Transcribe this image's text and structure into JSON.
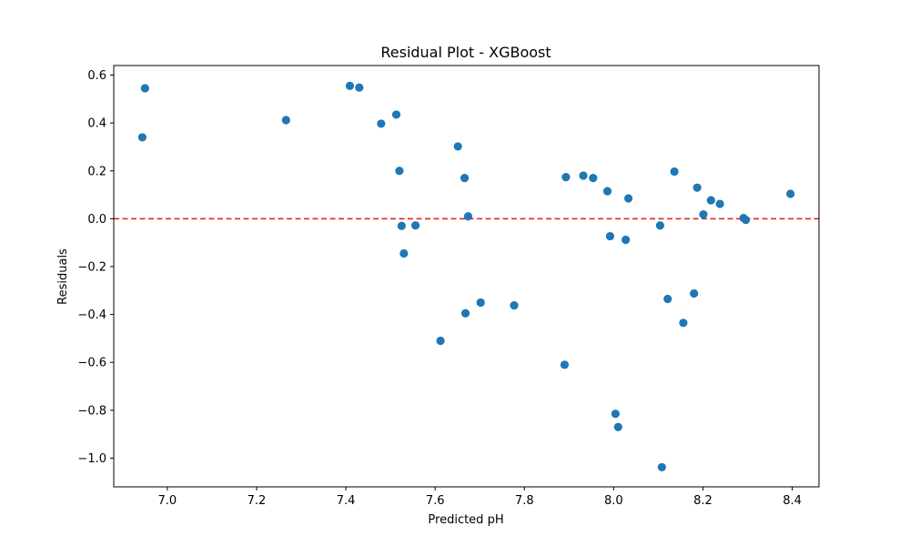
{
  "chart_data": {
    "type": "scatter",
    "title": "Residual Plot - XGBoost",
    "xlabel": "Predicted pH",
    "ylabel": "Residuals",
    "xlim": [
      6.88,
      8.46
    ],
    "ylim": [
      -1.12,
      0.64
    ],
    "xticks": [
      7.0,
      7.2,
      7.4,
      7.6,
      7.8,
      8.0,
      8.2,
      8.4
    ],
    "xtick_labels": [
      "7.0",
      "7.2",
      "7.4",
      "7.6",
      "7.8",
      "8.0",
      "8.2",
      "8.4"
    ],
    "yticks": [
      -1.0,
      -0.8,
      -0.6,
      -0.4,
      -0.2,
      0.0,
      0.2,
      0.4,
      0.6
    ],
    "ytick_labels": [
      "−1.0",
      "−0.8",
      "−0.6",
      "−0.4",
      "−0.2",
      "0.0",
      "0.2",
      "0.4",
      "0.6"
    ],
    "grid": false,
    "reference_line": {
      "y": 0.0,
      "style": "dashed",
      "color": "#e31a1c"
    },
    "marker_color": "#1f77b4",
    "points": [
      {
        "x": 6.944,
        "y": 0.34
      },
      {
        "x": 6.95,
        "y": 0.545
      },
      {
        "x": 7.266,
        "y": 0.412
      },
      {
        "x": 7.409,
        "y": 0.555
      },
      {
        "x": 7.43,
        "y": 0.548
      },
      {
        "x": 7.479,
        "y": 0.397
      },
      {
        "x": 7.513,
        "y": 0.435
      },
      {
        "x": 7.52,
        "y": 0.2
      },
      {
        "x": 7.525,
        "y": -0.03
      },
      {
        "x": 7.53,
        "y": -0.145
      },
      {
        "x": 7.556,
        "y": -0.028
      },
      {
        "x": 7.612,
        "y": -0.51
      },
      {
        "x": 7.651,
        "y": 0.302
      },
      {
        "x": 7.666,
        "y": 0.17
      },
      {
        "x": 7.668,
        "y": -0.395
      },
      {
        "x": 7.674,
        "y": 0.01
      },
      {
        "x": 7.702,
        "y": -0.35
      },
      {
        "x": 7.777,
        "y": -0.362
      },
      {
        "x": 7.89,
        "y": -0.61
      },
      {
        "x": 7.893,
        "y": 0.174
      },
      {
        "x": 7.932,
        "y": 0.18
      },
      {
        "x": 7.954,
        "y": 0.17
      },
      {
        "x": 7.986,
        "y": 0.115
      },
      {
        "x": 7.992,
        "y": -0.073
      },
      {
        "x": 8.004,
        "y": -0.815
      },
      {
        "x": 8.01,
        "y": -0.87
      },
      {
        "x": 8.027,
        "y": -0.088
      },
      {
        "x": 8.033,
        "y": 0.085
      },
      {
        "x": 8.104,
        "y": -0.028
      },
      {
        "x": 8.108,
        "y": -1.038
      },
      {
        "x": 8.121,
        "y": -0.335
      },
      {
        "x": 8.136,
        "y": 0.197
      },
      {
        "x": 8.156,
        "y": -0.435
      },
      {
        "x": 8.18,
        "y": -0.312
      },
      {
        "x": 8.187,
        "y": 0.13
      },
      {
        "x": 8.201,
        "y": 0.018
      },
      {
        "x": 8.218,
        "y": 0.077
      },
      {
        "x": 8.238,
        "y": 0.062
      },
      {
        "x": 8.291,
        "y": 0.003
      },
      {
        "x": 8.296,
        "y": -0.005
      },
      {
        "x": 8.396,
        "y": 0.104
      }
    ]
  }
}
